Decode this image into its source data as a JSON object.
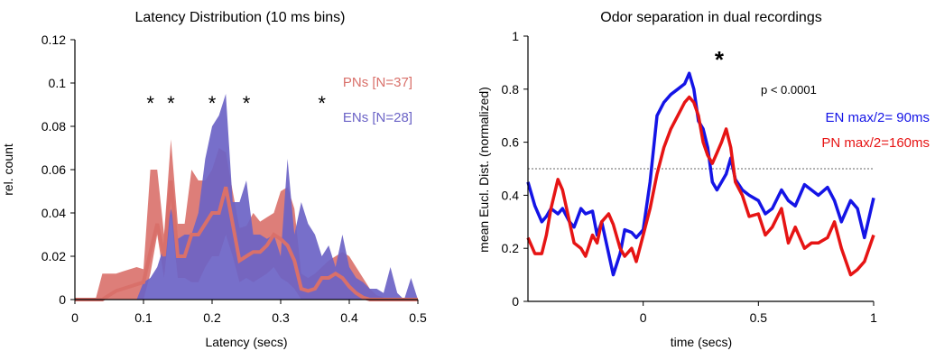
{
  "chart_data": [
    {
      "type": "area",
      "title": "Latency Distribution (10 ms bins)",
      "xlabel": "Latency (secs)",
      "ylabel": "rel. count",
      "xlim": [
        0,
        0.5
      ],
      "ylim": [
        0,
        0.12
      ],
      "xticks": [
        "0",
        "0.1",
        "0.2",
        "0.3",
        "0.4",
        "0.5"
      ],
      "yticks": [
        "0",
        "0.02",
        "0.04",
        "0.06",
        "0.08",
        "0.1",
        "0.12"
      ],
      "grid": false,
      "legend": "top-right",
      "significance_marker": "*",
      "significance_x": [
        0.11,
        0.14,
        0.2,
        0.25,
        0.36
      ],
      "series": [
        {
          "name": "PNs [N=37]",
          "color": "#D9706A",
          "x": [
            0,
            0.03,
            0.04,
            0.05,
            0.06,
            0.07,
            0.08,
            0.09,
            0.1,
            0.11,
            0.12,
            0.13,
            0.14,
            0.15,
            0.16,
            0.17,
            0.18,
            0.19,
            0.2,
            0.21,
            0.22,
            0.23,
            0.24,
            0.25,
            0.26,
            0.27,
            0.28,
            0.29,
            0.3,
            0.31,
            0.32,
            0.33,
            0.34,
            0.35,
            0.36,
            0.37,
            0.38,
            0.39,
            0.4,
            0.41,
            0.42,
            0.43,
            0.44,
            0.45,
            0.46,
            0.47,
            0.48,
            0.49,
            0.5
          ],
          "upper": [
            0,
            0,
            0.012,
            0.012,
            0.012,
            0.013,
            0.014,
            0.015,
            0.014,
            0.06,
            0.06,
            0.03,
            0.074,
            0.035,
            0.035,
            0.06,
            0.055,
            0.055,
            0.06,
            0.07,
            0.068,
            0.05,
            0.033,
            0.034,
            0.04,
            0.036,
            0.038,
            0.04,
            0.05,
            0.052,
            0.042,
            0.012,
            0.01,
            0.012,
            0.015,
            0.018,
            0.02,
            0.022,
            0.02,
            0.015,
            0.01,
            0.005,
            0.002,
            0.001,
            0,
            0,
            0,
            0,
            0
          ],
          "lower": [
            0,
            0,
            0,
            0,
            0,
            0,
            0,
            0,
            0,
            0.012,
            0.03,
            0.01,
            0.04,
            0.01,
            0.01,
            0.008,
            0.008,
            0.015,
            0.02,
            0.02,
            0.03,
            0.02,
            0.008,
            0.01,
            0.008,
            0.01,
            0.012,
            0.015,
            0.01,
            0.008,
            0.005,
            0,
            0,
            0,
            0,
            0,
            0,
            0,
            0,
            0,
            0,
            0,
            0,
            0,
            0,
            0,
            0,
            0,
            0
          ],
          "mean": [
            0,
            0,
            0,
            0.002,
            0.004,
            0.005,
            0.006,
            0.007,
            0.008,
            0.022,
            0.035,
            0.02,
            0.055,
            0.02,
            0.02,
            0.03,
            0.03,
            0.035,
            0.04,
            0.04,
            0.052,
            0.035,
            0.018,
            0.02,
            0.022,
            0.022,
            0.025,
            0.03,
            0.028,
            0.025,
            0.018,
            0.005,
            0.004,
            0.005,
            0.01,
            0.01,
            0.012,
            0.01,
            0.006,
            0.003,
            0.001,
            0,
            0,
            0,
            0,
            0,
            0,
            0,
            0
          ]
        },
        {
          "name": "ENs [N=28]",
          "color": "#6B63C6",
          "x": [
            0,
            0.06,
            0.07,
            0.08,
            0.09,
            0.1,
            0.11,
            0.12,
            0.13,
            0.14,
            0.15,
            0.16,
            0.17,
            0.18,
            0.19,
            0.2,
            0.21,
            0.22,
            0.23,
            0.24,
            0.25,
            0.26,
            0.27,
            0.28,
            0.29,
            0.3,
            0.31,
            0.32,
            0.33,
            0.34,
            0.35,
            0.36,
            0.37,
            0.38,
            0.39,
            0.4,
            0.41,
            0.42,
            0.43,
            0.44,
            0.45,
            0.46,
            0.47,
            0.48,
            0.49,
            0.5
          ],
          "values": [
            0,
            0,
            0,
            0,
            0,
            0.008,
            0.01,
            0.015,
            0.025,
            0.042,
            0.028,
            0.03,
            0.03,
            0.04,
            0.065,
            0.08,
            0.085,
            0.095,
            0.045,
            0.045,
            0.055,
            0.03,
            0.03,
            0.028,
            0.03,
            0.02,
            0.065,
            0.03,
            0.045,
            0.035,
            0.03,
            0.02,
            0.025,
            0.015,
            0.03,
            0.015,
            0.01,
            0.008,
            0.005,
            0.005,
            0.003,
            0.015,
            0.003,
            0,
            0.01,
            0
          ]
        }
      ]
    },
    {
      "type": "line",
      "title": "Odor separation in dual recordings",
      "xlabel": "time (secs)",
      "ylabel": "mean Eucl. Dist. (normalized)",
      "xlim": [
        -0.5,
        1
      ],
      "ylim": [
        0,
        1
      ],
      "xticks": [
        "0",
        "0.5",
        "1"
      ],
      "yticks": [
        "0",
        "0.2",
        "0.4",
        "0.6",
        "0.8",
        "1"
      ],
      "grid": false,
      "legend": "right",
      "reference_line_y": 0.5,
      "significance_marker": "*",
      "significance_x": 0.33,
      "p_value_text": "p < 0.0001",
      "series": [
        {
          "name": "EN max/2= 90ms",
          "color": "#1414E6",
          "x": [
            -0.5,
            -0.47,
            -0.44,
            -0.42,
            -0.4,
            -0.37,
            -0.35,
            -0.32,
            -0.3,
            -0.27,
            -0.25,
            -0.22,
            -0.2,
            -0.18,
            -0.15,
            -0.13,
            -0.1,
            -0.08,
            -0.05,
            -0.03,
            0,
            0.03,
            0.06,
            0.09,
            0.12,
            0.15,
            0.18,
            0.2,
            0.22,
            0.24,
            0.26,
            0.28,
            0.3,
            0.32,
            0.34,
            0.36,
            0.38,
            0.4,
            0.43,
            0.46,
            0.5,
            0.53,
            0.56,
            0.6,
            0.63,
            0.66,
            0.7,
            0.73,
            0.76,
            0.8,
            0.83,
            0.86,
            0.9,
            0.93,
            0.96,
            1.0
          ],
          "y": [
            0.45,
            0.36,
            0.3,
            0.32,
            0.35,
            0.33,
            0.35,
            0.3,
            0.28,
            0.35,
            0.33,
            0.34,
            0.25,
            0.3,
            0.18,
            0.1,
            0.18,
            0.27,
            0.26,
            0.24,
            0.27,
            0.45,
            0.7,
            0.75,
            0.78,
            0.8,
            0.82,
            0.86,
            0.8,
            0.68,
            0.65,
            0.58,
            0.45,
            0.42,
            0.45,
            0.48,
            0.54,
            0.46,
            0.42,
            0.4,
            0.38,
            0.33,
            0.35,
            0.42,
            0.38,
            0.36,
            0.44,
            0.42,
            0.4,
            0.43,
            0.38,
            0.3,
            0.38,
            0.35,
            0.24,
            0.39
          ]
        },
        {
          "name": "PN max/2=160ms",
          "color": "#E61414",
          "x": [
            -0.5,
            -0.47,
            -0.44,
            -0.42,
            -0.4,
            -0.37,
            -0.35,
            -0.32,
            -0.3,
            -0.27,
            -0.25,
            -0.22,
            -0.2,
            -0.18,
            -0.15,
            -0.13,
            -0.1,
            -0.08,
            -0.05,
            -0.03,
            0,
            0.03,
            0.06,
            0.09,
            0.12,
            0.15,
            0.18,
            0.2,
            0.22,
            0.24,
            0.26,
            0.28,
            0.3,
            0.32,
            0.34,
            0.36,
            0.38,
            0.4,
            0.43,
            0.46,
            0.5,
            0.53,
            0.56,
            0.6,
            0.63,
            0.66,
            0.7,
            0.73,
            0.76,
            0.8,
            0.83,
            0.86,
            0.9,
            0.93,
            0.96,
            1.0
          ],
          "y": [
            0.24,
            0.18,
            0.18,
            0.25,
            0.35,
            0.46,
            0.42,
            0.3,
            0.22,
            0.2,
            0.17,
            0.25,
            0.22,
            0.3,
            0.33,
            0.29,
            0.2,
            0.17,
            0.2,
            0.15,
            0.25,
            0.35,
            0.48,
            0.58,
            0.65,
            0.7,
            0.75,
            0.77,
            0.75,
            0.7,
            0.6,
            0.55,
            0.52,
            0.56,
            0.6,
            0.65,
            0.58,
            0.45,
            0.4,
            0.32,
            0.33,
            0.25,
            0.28,
            0.35,
            0.22,
            0.28,
            0.2,
            0.22,
            0.22,
            0.24,
            0.3,
            0.2,
            0.1,
            0.12,
            0.15,
            0.25
          ]
        }
      ]
    }
  ]
}
